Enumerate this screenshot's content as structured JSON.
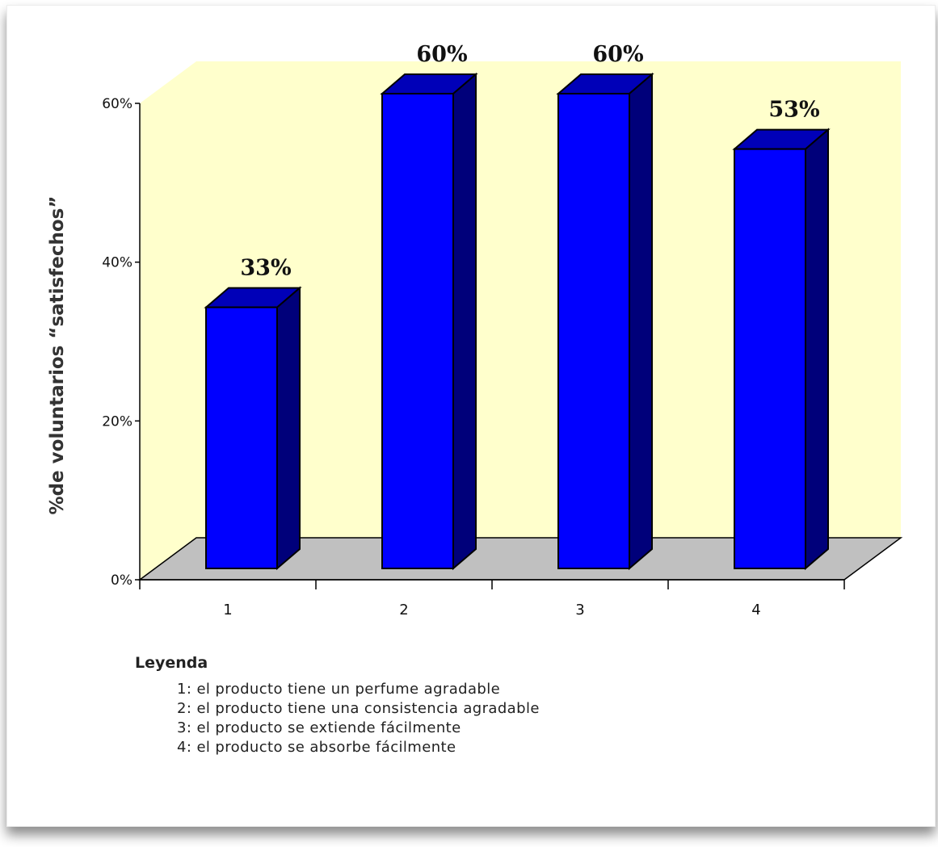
{
  "chart_data": {
    "type": "bar",
    "categories": [
      "1",
      "2",
      "3",
      "4"
    ],
    "values": [
      33,
      60,
      60,
      53
    ],
    "value_labels": [
      "33%",
      "60%",
      "60%",
      "53%"
    ],
    "ylabel": "%de voluntarios “satisfechos”",
    "xlabel": "",
    "ylim": [
      0,
      60
    ],
    "yticks": [
      "0%",
      "20%",
      "40%",
      "60%"
    ],
    "ytick_values": [
      0,
      20,
      40,
      60
    ],
    "style": "3d",
    "grid": false,
    "colors": {
      "bar_front": "#0000ff",
      "bar_top": "#0000b8",
      "bar_side": "#00007a",
      "back_wall": "#ffffcc",
      "floor": "#c0c0c0"
    }
  },
  "legend": {
    "title": "Leyenda",
    "items": [
      "1: el producto tiene un perfume agradable",
      "2: el producto tiene una consistencia agradable",
      "3: el producto se extiende fácilmente",
      "4: el producto se absorbe fácilmente"
    ]
  }
}
